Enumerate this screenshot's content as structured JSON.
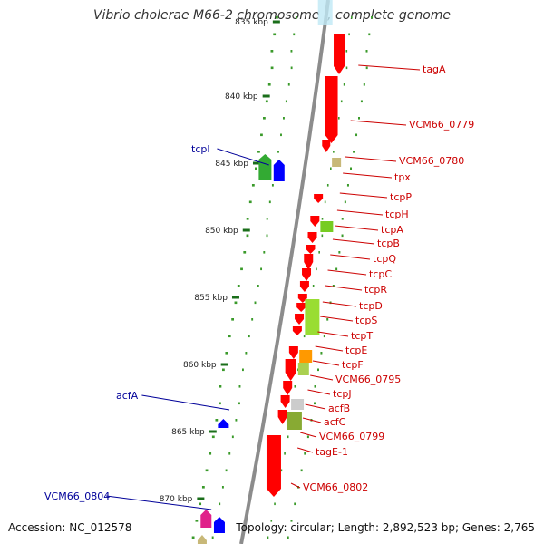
{
  "title": "Vibrio cholerae M66-2 chromosome I, complete genome",
  "footer": {
    "accession": "Accession: NC_012578",
    "stats": "Topology: circular; Length: 2,892,523 bp; Genes: 2,765"
  },
  "ticks": [
    "835 kbp",
    "840 kbp",
    "845 kbp",
    "850 kbp",
    "855 kbp",
    "860 kbp",
    "865 kbp",
    "870 kbp"
  ],
  "gene_labels_right": [
    "tagA",
    "VCM66_0779",
    "VCM66_0780",
    "tpx",
    "tcpP",
    "tcpH",
    "tcpA",
    "tcpB",
    "tcpQ",
    "tcpC",
    "tcpR",
    "tcpD",
    "tcpS",
    "tcpT",
    "tcpE",
    "tcpF",
    "VCM66_0795",
    "tcpJ",
    "acfB",
    "acfC",
    "VCM66_0799",
    "tagE-1",
    "VCM66_0802"
  ],
  "gene_labels_left": [
    "tcpI",
    "acfA",
    "VCM66_0804"
  ],
  "colors": {
    "forward_strand": "#ff0000",
    "reverse_strand": "#0000ff",
    "forward_label": "#cc0000",
    "reverse_label": "#000099",
    "backbone": "#8c8c8c",
    "tick": "#1a6e1a",
    "gc_dots": "#3a9a2a"
  }
}
